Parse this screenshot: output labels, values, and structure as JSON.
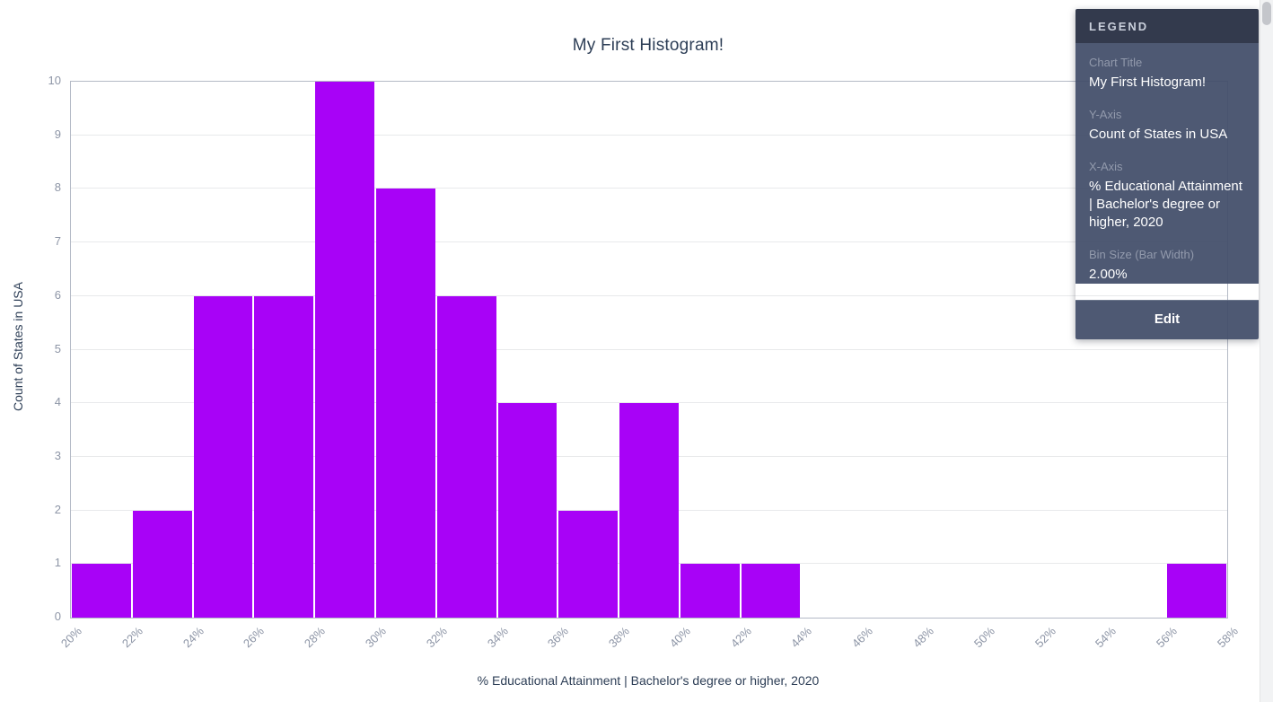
{
  "chart_data": {
    "type": "bar",
    "subtype": "histogram",
    "title": "My First Histogram!",
    "xlabel": "% Educational Attainment | Bachelor's degree or higher, 2020",
    "ylabel": "Count of States in USA",
    "bin_size_percent": 2,
    "bin_edges_percent": [
      20,
      22,
      24,
      26,
      28,
      30,
      32,
      34,
      36,
      38,
      40,
      42,
      44,
      46,
      48,
      50,
      52,
      54,
      56,
      58
    ],
    "counts": [
      1,
      2,
      6,
      6,
      10,
      8,
      6,
      4,
      2,
      4,
      1,
      1,
      0,
      0,
      0,
      0,
      0,
      0,
      1
    ],
    "x_tick_labels": [
      "20%",
      "22%",
      "24%",
      "26%",
      "28%",
      "30%",
      "32%",
      "34%",
      "36%",
      "38%",
      "40%",
      "42%",
      "44%",
      "46%",
      "48%",
      "50%",
      "52%",
      "54%",
      "56%",
      "58%"
    ],
    "y_tick_labels": [
      "0",
      "1",
      "2",
      "3",
      "4",
      "5",
      "6",
      "7",
      "8",
      "9",
      "10"
    ],
    "ylim": [
      0,
      10
    ],
    "grid": true,
    "legend_position": "top-right",
    "bar_color": "#a802f7"
  },
  "legend": {
    "header": "LEGEND",
    "sections": [
      {
        "label": "Chart Title",
        "value": "My First Histogram!"
      },
      {
        "label": "Y-Axis",
        "value": "Count of States in USA"
      },
      {
        "label": "X-Axis",
        "value": "% Educational Attainment | Bachelor's degree or higher, 2020"
      },
      {
        "label": "Bin Size (Bar Width)",
        "value": "2.00%"
      }
    ],
    "edit_label": "Edit"
  },
  "colors": {
    "bar": "#a802f7",
    "title_text": "#2d3e56",
    "tick_text": "#8d95a6",
    "legend_header_bg": "#2c3447",
    "legend_body_bg": "#414c68",
    "gridline": "#e8e9eb"
  }
}
